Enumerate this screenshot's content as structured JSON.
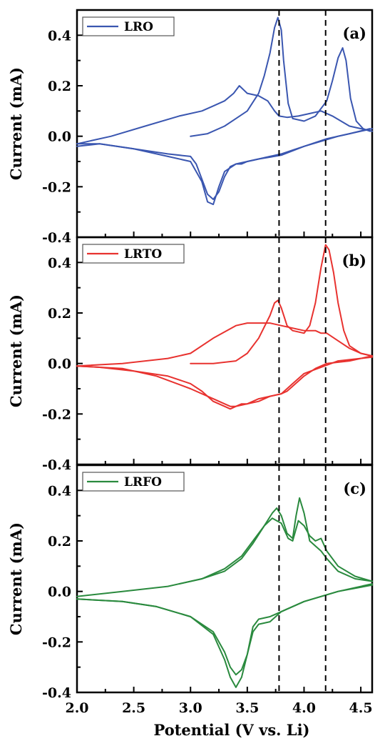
{
  "chart_data": [
    {
      "type": "line",
      "panel_label": "(a)",
      "legend": "LRO",
      "color": "#3a56b0",
      "ylabel": "Current (mA)",
      "xlim": [
        2.0,
        4.6
      ],
      "ylim": [
        -0.4,
        0.5
      ],
      "yticks": [
        -0.4,
        -0.2,
        0.0,
        0.2,
        0.4
      ],
      "ytick_labels": [
        "-0.4",
        "-0.2",
        "0.0",
        "0.2",
        "0.4"
      ],
      "reference_lines_x": [
        3.78,
        4.19
      ],
      "series": [
        {
          "x": [
            3.0,
            3.15,
            3.3,
            3.4,
            3.5,
            3.6,
            3.65,
            3.7,
            3.74,
            3.77,
            3.8,
            3.82,
            3.86,
            3.9,
            4.0,
            4.1,
            4.2,
            4.25,
            4.3,
            4.34,
            4.37,
            4.41,
            4.46,
            4.52,
            4.58
          ],
          "y": [
            0.0,
            0.01,
            0.04,
            0.07,
            0.1,
            0.17,
            0.24,
            0.33,
            0.43,
            0.47,
            0.42,
            0.3,
            0.13,
            0.07,
            0.06,
            0.08,
            0.14,
            0.22,
            0.31,
            0.35,
            0.3,
            0.15,
            0.06,
            0.03,
            0.02
          ]
        },
        {
          "x": [
            4.58,
            4.4,
            4.2,
            4.0,
            3.9,
            3.8,
            3.7,
            3.6,
            3.5,
            3.45,
            3.4,
            3.35,
            3.3,
            3.25,
            3.2,
            3.15,
            3.1,
            3.05,
            3.0,
            2.8,
            2.5,
            2.2,
            2.0
          ],
          "y": [
            0.03,
            0.01,
            -0.01,
            -0.04,
            -0.055,
            -0.07,
            -0.08,
            -0.09,
            -0.1,
            -0.11,
            -0.11,
            -0.12,
            -0.16,
            -0.22,
            -0.25,
            -0.23,
            -0.17,
            -0.11,
            -0.08,
            -0.07,
            -0.05,
            -0.03,
            -0.03
          ]
        },
        {
          "x": [
            2.0,
            2.3,
            2.6,
            2.9,
            3.1,
            3.2,
            3.3,
            3.38,
            3.43,
            3.5,
            3.6,
            3.68,
            3.74,
            3.78,
            3.85,
            3.95,
            4.05,
            4.15,
            4.25,
            4.4,
            4.6
          ],
          "y": [
            -0.03,
            0.0,
            0.04,
            0.08,
            0.1,
            0.12,
            0.14,
            0.17,
            0.2,
            0.17,
            0.16,
            0.14,
            0.1,
            0.08,
            0.075,
            0.08,
            0.09,
            0.1,
            0.08,
            0.04,
            0.02
          ]
        },
        {
          "x": [
            4.6,
            4.3,
            4.0,
            3.8,
            3.6,
            3.5,
            3.4,
            3.3,
            3.25,
            3.2,
            3.15,
            3.1,
            3.0,
            2.8,
            2.5,
            2.2,
            2.0
          ],
          "y": [
            0.03,
            0.0,
            -0.04,
            -0.075,
            -0.09,
            -0.1,
            -0.11,
            -0.14,
            -0.2,
            -0.27,
            -0.26,
            -0.18,
            -0.1,
            -0.08,
            -0.05,
            -0.03,
            -0.04
          ]
        }
      ]
    },
    {
      "type": "line",
      "panel_label": "(b)",
      "legend": "LRTO",
      "color": "#e8322f",
      "ylabel": "Current (mA)",
      "xlim": [
        2.0,
        4.6
      ],
      "ylim": [
        -0.4,
        0.5
      ],
      "yticks": [
        -0.4,
        -0.2,
        0.0,
        0.2,
        0.4
      ],
      "ytick_labels": [
        "-0.4",
        "-0.2",
        "0.0",
        "0.2",
        "0.4"
      ],
      "reference_lines_x": [
        3.78,
        4.19
      ],
      "series": [
        {
          "x": [
            3.0,
            3.2,
            3.4,
            3.5,
            3.6,
            3.7,
            3.74,
            3.77,
            3.8,
            3.85,
            3.9,
            4.0,
            4.05,
            4.1,
            4.15,
            4.19,
            4.22,
            4.26,
            4.3,
            4.35,
            4.4,
            4.5,
            4.6
          ],
          "y": [
            0.0,
            0.0,
            0.01,
            0.04,
            0.1,
            0.19,
            0.24,
            0.25,
            0.22,
            0.15,
            0.13,
            0.12,
            0.15,
            0.24,
            0.38,
            0.47,
            0.45,
            0.36,
            0.24,
            0.13,
            0.07,
            0.04,
            0.03
          ]
        },
        {
          "x": [
            4.6,
            4.4,
            4.2,
            4.1,
            4.0,
            3.9,
            3.85,
            3.8,
            3.7,
            3.6,
            3.5,
            3.45,
            3.4,
            3.35,
            3.3,
            3.2,
            3.1,
            3.0,
            2.8,
            2.5,
            2.2,
            2.0
          ],
          "y": [
            0.03,
            0.01,
            0.0,
            -0.02,
            -0.05,
            -0.09,
            -0.11,
            -0.12,
            -0.13,
            -0.14,
            -0.16,
            -0.16,
            -0.17,
            -0.18,
            -0.17,
            -0.15,
            -0.11,
            -0.08,
            -0.05,
            -0.03,
            -0.015,
            -0.01
          ]
        },
        {
          "x": [
            2.0,
            2.4,
            2.8,
            3.0,
            3.2,
            3.4,
            3.5,
            3.6,
            3.7,
            3.8,
            3.9,
            4.0,
            4.1,
            4.15,
            4.2,
            4.3,
            4.4,
            4.5,
            4.6
          ],
          "y": [
            -0.01,
            0.0,
            0.02,
            0.04,
            0.1,
            0.15,
            0.16,
            0.16,
            0.16,
            0.15,
            0.14,
            0.13,
            0.13,
            0.12,
            0.12,
            0.09,
            0.06,
            0.04,
            0.03
          ]
        },
        {
          "x": [
            4.6,
            4.3,
            4.0,
            3.9,
            3.85,
            3.8,
            3.7,
            3.6,
            3.5,
            3.4,
            3.35,
            3.3,
            3.2,
            3.0,
            2.7,
            2.4,
            2.0
          ],
          "y": [
            0.025,
            0.01,
            -0.04,
            -0.08,
            -0.1,
            -0.12,
            -0.13,
            -0.15,
            -0.16,
            -0.17,
            -0.17,
            -0.16,
            -0.14,
            -0.1,
            -0.05,
            -0.02,
            -0.01
          ]
        }
      ]
    },
    {
      "type": "line",
      "panel_label": "(c)",
      "legend": "LRFO",
      "color": "#2a8a3e",
      "ylabel": "Current (mA)",
      "xlabel": "Potential (V vs. Li)",
      "xlim": [
        2.0,
        4.6
      ],
      "ylim": [
        -0.4,
        0.5
      ],
      "xticks": [
        2.0,
        2.5,
        3.0,
        3.5,
        4.0,
        4.5
      ],
      "xtick_labels": [
        "2.0",
        "2.5",
        "3.0",
        "3.5",
        "4.0",
        "4.5"
      ],
      "yticks": [
        -0.4,
        -0.2,
        0.0,
        0.2,
        0.4
      ],
      "ytick_labels": [
        "-0.4",
        "-0.2",
        "0.0",
        "0.2",
        "0.4"
      ],
      "reference_lines_x": [
        3.78,
        4.19
      ],
      "series": [
        {
          "x": [
            2.9,
            3.1,
            3.3,
            3.45,
            3.55,
            3.65,
            3.72,
            3.76,
            3.8,
            3.85,
            3.9,
            3.93,
            3.96,
            4.0,
            4.05,
            4.1,
            4.15,
            4.2,
            4.3,
            4.45,
            4.6
          ],
          "y": [
            0.03,
            0.05,
            0.08,
            0.13,
            0.19,
            0.26,
            0.31,
            0.33,
            0.3,
            0.23,
            0.21,
            0.3,
            0.37,
            0.31,
            0.2,
            0.18,
            0.16,
            0.13,
            0.08,
            0.05,
            0.04
          ]
        },
        {
          "x": [
            4.6,
            4.3,
            4.0,
            3.8,
            3.7,
            3.6,
            3.55,
            3.5,
            3.45,
            3.4,
            3.35,
            3.3,
            3.2,
            3.0,
            2.7,
            2.4,
            2.0
          ],
          "y": [
            0.03,
            0.0,
            -0.04,
            -0.08,
            -0.1,
            -0.11,
            -0.14,
            -0.25,
            -0.34,
            -0.38,
            -0.34,
            -0.27,
            -0.17,
            -0.1,
            -0.06,
            -0.04,
            -0.03
          ]
        },
        {
          "x": [
            2.0,
            2.4,
            2.8,
            3.1,
            3.3,
            3.45,
            3.55,
            3.65,
            3.72,
            3.76,
            3.8,
            3.86,
            3.9,
            3.95,
            4.0,
            4.05,
            4.1,
            4.15,
            4.2,
            4.3,
            4.45,
            4.6
          ],
          "y": [
            -0.02,
            0.0,
            0.02,
            0.05,
            0.09,
            0.14,
            0.2,
            0.26,
            0.29,
            0.28,
            0.27,
            0.21,
            0.2,
            0.28,
            0.26,
            0.22,
            0.2,
            0.21,
            0.16,
            0.1,
            0.06,
            0.04
          ]
        },
        {
          "x": [
            4.6,
            4.3,
            4.0,
            3.8,
            3.7,
            3.6,
            3.55,
            3.5,
            3.45,
            3.4,
            3.35,
            3.3,
            3.2,
            3.0,
            2.7,
            2.4,
            2.0
          ],
          "y": [
            0.025,
            0.0,
            -0.04,
            -0.08,
            -0.12,
            -0.13,
            -0.16,
            -0.25,
            -0.31,
            -0.33,
            -0.3,
            -0.24,
            -0.16,
            -0.1,
            -0.06,
            -0.04,
            -0.03
          ]
        }
      ]
    }
  ]
}
